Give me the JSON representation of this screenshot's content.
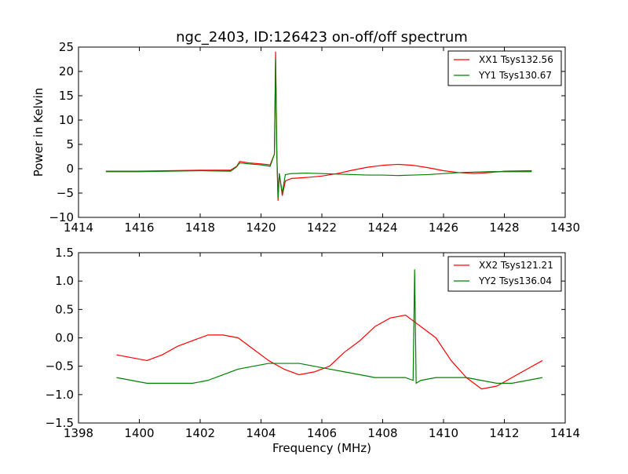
{
  "chart_data": [
    {
      "type": "line",
      "title": "ngc_2403, ID:126423 on-off/off spectrum",
      "xlabel": "",
      "ylabel": "Power in Kelvin",
      "xlim": [
        1414,
        1430
      ],
      "ylim": [
        -10,
        25
      ],
      "xticks": [
        1414,
        1416,
        1418,
        1420,
        1422,
        1424,
        1426,
        1428,
        1430
      ],
      "yticks": [
        -10,
        -5,
        0,
        5,
        10,
        15,
        20,
        25
      ],
      "grid": false,
      "legend_position": "top-right",
      "series": [
        {
          "name": "XX1 Tsys132.56",
          "color": "#ff0000",
          "x": [
            1414.9,
            1416.0,
            1417.0,
            1418.0,
            1419.0,
            1419.2,
            1419.3,
            1419.6,
            1420.0,
            1420.3,
            1420.44,
            1420.48,
            1420.52,
            1420.56,
            1420.6,
            1420.7,
            1420.8,
            1421.0,
            1421.5,
            1422.0,
            1422.5,
            1423.0,
            1423.5,
            1424.0,
            1424.5,
            1425.0,
            1425.5,
            1426.0,
            1426.5,
            1427.0,
            1427.5,
            1428.0,
            1428.9
          ],
          "y": [
            -0.5,
            -0.5,
            -0.4,
            -0.3,
            -0.3,
            0.5,
            1.5,
            1.2,
            1.0,
            0.8,
            3.0,
            24.0,
            3.0,
            -6.5,
            -1.0,
            -5.5,
            -2.5,
            -2.0,
            -1.8,
            -1.5,
            -1.0,
            -0.3,
            0.3,
            0.7,
            0.9,
            0.7,
            0.2,
            -0.4,
            -0.8,
            -1.0,
            -0.8,
            -0.5,
            -0.4
          ]
        },
        {
          "name": "YY1 Tsys130.67",
          "color": "#008000",
          "x": [
            1414.9,
            1416.0,
            1417.0,
            1418.0,
            1419.0,
            1419.2,
            1419.3,
            1419.6,
            1420.0,
            1420.3,
            1420.44,
            1420.48,
            1420.52,
            1420.56,
            1420.6,
            1420.7,
            1420.8,
            1421.0,
            1421.5,
            1422.0,
            1422.5,
            1423.0,
            1423.5,
            1424.0,
            1424.5,
            1425.0,
            1425.5,
            1426.0,
            1426.5,
            1427.0,
            1427.5,
            1428.0,
            1428.9
          ],
          "y": [
            -0.6,
            -0.6,
            -0.5,
            -0.4,
            -0.5,
            0.4,
            1.2,
            1.0,
            0.8,
            0.5,
            3.0,
            22.5,
            3.0,
            -6.0,
            -1.0,
            -5.0,
            -1.2,
            -1.0,
            -0.9,
            -1.0,
            -1.1,
            -1.2,
            -1.3,
            -1.3,
            -1.4,
            -1.3,
            -1.2,
            -1.0,
            -0.8,
            -0.7,
            -0.6,
            -0.6,
            -0.6
          ]
        }
      ]
    },
    {
      "type": "line",
      "title": "",
      "xlabel": "Frequency (MHz)",
      "ylabel": "",
      "xlim": [
        1398,
        1414
      ],
      "ylim": [
        -1.5,
        1.5
      ],
      "xticks": [
        1398,
        1400,
        1402,
        1404,
        1406,
        1408,
        1410,
        1412,
        1414
      ],
      "yticks": [
        -1.5,
        -1.0,
        -0.5,
        0.0,
        0.5,
        1.0,
        1.5
      ],
      "grid": false,
      "legend_position": "top-right",
      "series": [
        {
          "name": "XX2 Tsys121.21",
          "color": "#ff0000",
          "x": [
            1399.25,
            1399.75,
            1400.25,
            1400.75,
            1401.25,
            1401.75,
            1402.25,
            1402.75,
            1403.25,
            1403.75,
            1404.25,
            1404.75,
            1405.25,
            1405.75,
            1406.25,
            1406.75,
            1407.25,
            1407.75,
            1408.25,
            1408.75,
            1409.25,
            1409.75,
            1410.25,
            1410.75,
            1411.25,
            1411.75,
            1412.25,
            1412.75,
            1413.25
          ],
          "y": [
            -0.3,
            -0.35,
            -0.4,
            -0.3,
            -0.15,
            -0.05,
            0.05,
            0.05,
            0.0,
            -0.2,
            -0.4,
            -0.55,
            -0.65,
            -0.6,
            -0.5,
            -0.25,
            -0.05,
            0.2,
            0.35,
            0.4,
            0.2,
            0.0,
            -0.4,
            -0.7,
            -0.9,
            -0.85,
            -0.7,
            -0.55,
            -0.4
          ]
        },
        {
          "name": "YY2 Tsys136.04",
          "color": "#008000",
          "x": [
            1399.25,
            1399.75,
            1400.25,
            1400.75,
            1401.25,
            1401.75,
            1402.25,
            1402.75,
            1403.25,
            1403.75,
            1404.25,
            1404.75,
            1405.25,
            1405.75,
            1406.25,
            1406.75,
            1407.25,
            1407.75,
            1408.25,
            1408.75,
            1409.0,
            1409.05,
            1409.1,
            1409.25,
            1409.75,
            1410.25,
            1410.75,
            1411.25,
            1411.75,
            1412.25,
            1412.75,
            1413.25
          ],
          "y": [
            -0.7,
            -0.75,
            -0.8,
            -0.8,
            -0.8,
            -0.8,
            -0.75,
            -0.65,
            -0.55,
            -0.5,
            -0.45,
            -0.45,
            -0.45,
            -0.5,
            -0.55,
            -0.6,
            -0.65,
            -0.7,
            -0.7,
            -0.7,
            -0.75,
            1.2,
            -0.8,
            -0.75,
            -0.7,
            -0.7,
            -0.7,
            -0.75,
            -0.8,
            -0.8,
            -0.75,
            -0.7
          ]
        }
      ]
    }
  ]
}
